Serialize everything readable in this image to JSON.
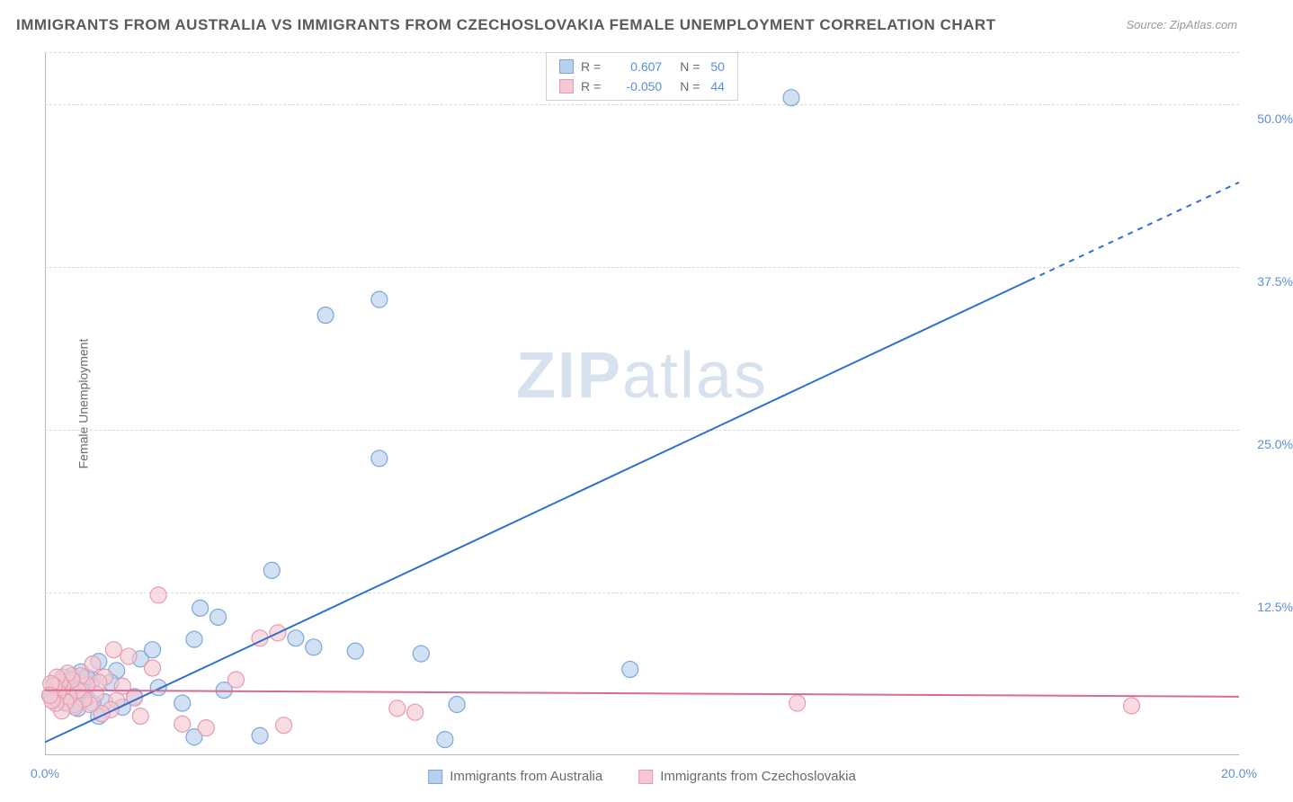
{
  "title": "IMMIGRANTS FROM AUSTRALIA VS IMMIGRANTS FROM CZECHOSLOVAKIA FEMALE UNEMPLOYMENT CORRELATION CHART",
  "source": "Source: ZipAtlas.com",
  "y_axis_label": "Female Unemployment",
  "watermark_bold": "ZIP",
  "watermark_rest": "atlas",
  "chart": {
    "type": "scatter",
    "xlim": [
      0,
      20
    ],
    "ylim": [
      0,
      54
    ],
    "x_ticks": [
      {
        "pos": 0,
        "label": "0.0%"
      },
      {
        "pos": 20,
        "label": "20.0%"
      }
    ],
    "y_ticks": [
      {
        "pos": 12.5,
        "label": "12.5%"
      },
      {
        "pos": 25.0,
        "label": "25.0%"
      },
      {
        "pos": 37.5,
        "label": "37.5%"
      },
      {
        "pos": 50.0,
        "label": "50.0%"
      }
    ],
    "grid_color": "#d8d8d8",
    "axis_color": "#b8b8b8",
    "background": "#ffffff",
    "series": [
      {
        "name": "Immigrants from Australia",
        "color_fill": "#b9d0ec",
        "color_stroke": "#7aa8db",
        "line_color": "#2e6fd1",
        "marker_radius": 9,
        "r_value": "0.607",
        "n_value": "50",
        "regression": {
          "x1": 0,
          "y1": 1.0,
          "x2_solid": 16.5,
          "y2_solid": 36.5,
          "x2_dash": 20.0,
          "y2_dash": 44.0
        },
        "points": [
          [
            12.5,
            50.5
          ],
          [
            4.7,
            33.8
          ],
          [
            5.6,
            35.0
          ],
          [
            5.6,
            22.8
          ],
          [
            3.8,
            14.2
          ],
          [
            2.6,
            11.3
          ],
          [
            2.9,
            10.6
          ],
          [
            2.5,
            8.9
          ],
          [
            4.2,
            9.0
          ],
          [
            4.5,
            8.3
          ],
          [
            5.2,
            8.0
          ],
          [
            6.3,
            7.8
          ],
          [
            9.8,
            6.6
          ],
          [
            6.9,
            3.9
          ],
          [
            6.7,
            1.2
          ],
          [
            3.6,
            1.5
          ],
          [
            2.5,
            1.4
          ],
          [
            3.0,
            5.0
          ],
          [
            2.3,
            4.0
          ],
          [
            1.9,
            5.2
          ],
          [
            1.6,
            7.4
          ],
          [
            1.8,
            8.1
          ],
          [
            1.2,
            6.5
          ],
          [
            1.1,
            5.6
          ],
          [
            0.9,
            7.2
          ],
          [
            1.5,
            4.5
          ],
          [
            1.3,
            3.7
          ],
          [
            0.7,
            4.4
          ],
          [
            0.8,
            5.8
          ],
          [
            0.5,
            5.2
          ],
          [
            0.6,
            6.4
          ],
          [
            0.4,
            4.8
          ],
          [
            0.3,
            5.5
          ],
          [
            0.45,
            6.1
          ],
          [
            0.35,
            4.0
          ],
          [
            0.55,
            3.6
          ],
          [
            0.25,
            5.0
          ],
          [
            0.65,
            4.6
          ],
          [
            0.2,
            4.3
          ],
          [
            0.7,
            6.0
          ],
          [
            0.5,
            3.9
          ],
          [
            0.9,
            3.0
          ],
          [
            1.0,
            4.1
          ],
          [
            0.15,
            5.4
          ],
          [
            0.3,
            6.0
          ],
          [
            0.4,
            5.6
          ],
          [
            0.6,
            5.0
          ],
          [
            0.1,
            4.6
          ],
          [
            0.8,
            4.0
          ],
          [
            0.2,
            5.2
          ]
        ]
      },
      {
        "name": "Immigrants from Czechoslovakia",
        "color_fill": "#f4c9d3",
        "color_stroke": "#e79bb0",
        "line_color": "#d96a93",
        "marker_radius": 9,
        "r_value": "-0.050",
        "n_value": "44",
        "regression": {
          "x1": 0,
          "y1": 5.0,
          "x2_solid": 20.0,
          "y2_solid": 4.5,
          "x2_dash": 20.0,
          "y2_dash": 4.5
        },
        "points": [
          [
            18.2,
            3.8
          ],
          [
            12.6,
            4.0
          ],
          [
            6.2,
            3.3
          ],
          [
            5.9,
            3.6
          ],
          [
            4.0,
            2.3
          ],
          [
            3.9,
            9.4
          ],
          [
            3.6,
            9.0
          ],
          [
            3.2,
            5.8
          ],
          [
            2.7,
            2.1
          ],
          [
            2.3,
            2.4
          ],
          [
            1.9,
            12.3
          ],
          [
            1.8,
            6.7
          ],
          [
            1.6,
            3.0
          ],
          [
            1.5,
            4.4
          ],
          [
            1.4,
            7.6
          ],
          [
            1.3,
            5.3
          ],
          [
            1.2,
            4.2
          ],
          [
            1.15,
            8.1
          ],
          [
            1.1,
            3.5
          ],
          [
            1.0,
            6.0
          ],
          [
            0.95,
            3.2
          ],
          [
            0.9,
            5.6
          ],
          [
            0.85,
            4.7
          ],
          [
            0.8,
            7.0
          ],
          [
            0.75,
            3.9
          ],
          [
            0.7,
            5.4
          ],
          [
            0.65,
            4.3
          ],
          [
            0.6,
            6.1
          ],
          [
            0.55,
            5.0
          ],
          [
            0.5,
            3.7
          ],
          [
            0.45,
            5.8
          ],
          [
            0.4,
            4.5
          ],
          [
            0.38,
            6.3
          ],
          [
            0.35,
            4.1
          ],
          [
            0.3,
            5.2
          ],
          [
            0.28,
            3.4
          ],
          [
            0.25,
            5.6
          ],
          [
            0.22,
            4.8
          ],
          [
            0.2,
            6.0
          ],
          [
            0.18,
            4.0
          ],
          [
            0.15,
            5.3
          ],
          [
            0.12,
            4.2
          ],
          [
            0.1,
            5.5
          ],
          [
            0.08,
            4.6
          ]
        ]
      }
    ]
  },
  "legend_top": {
    "r_label": "R =",
    "n_label": "N ="
  },
  "legend_bottom": [
    {
      "label": "Immigrants from Australia"
    },
    {
      "label": "Immigrants from Czechoslovakia"
    }
  ]
}
